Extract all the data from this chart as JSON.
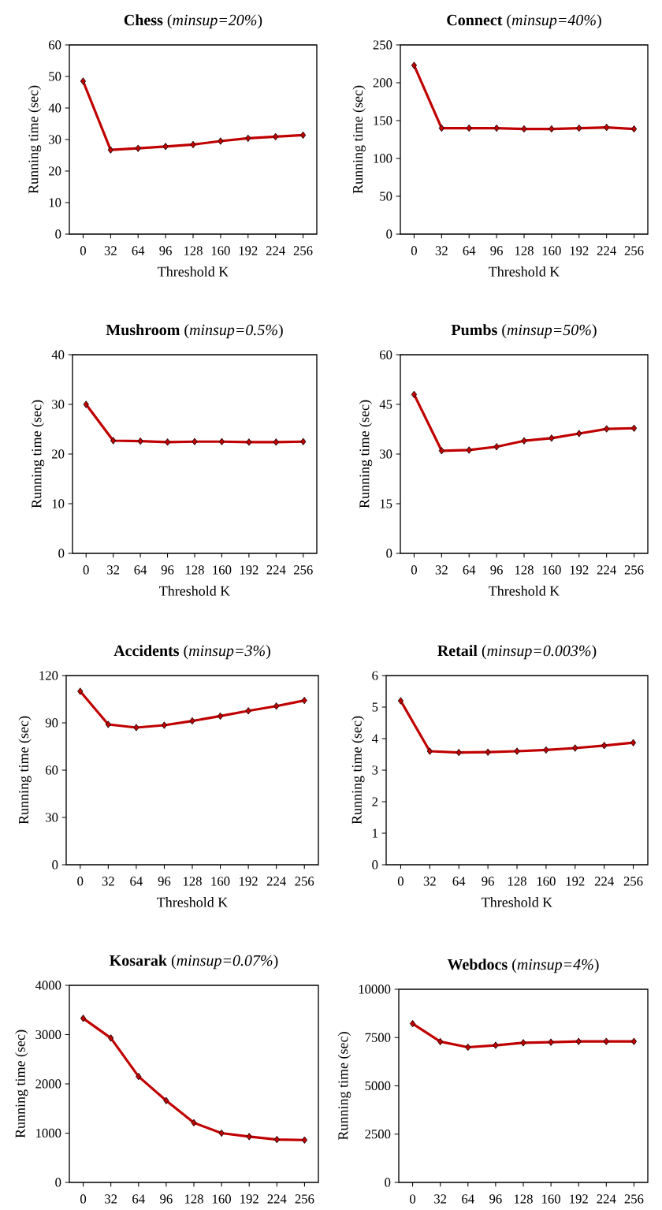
{
  "chart_data": [
    {
      "type": "line",
      "title": "**Chess** (*minsup=20%*)",
      "xlabel": "Threshold K",
      "ylabel": "Running time (sec)",
      "categories": [
        "0",
        "32",
        "64",
        "96",
        "128",
        "160",
        "192",
        "224",
        "256"
      ],
      "series": [
        {
          "color": "#c00000",
          "values": [
            48.5,
            26.7,
            27.2,
            27.8,
            28.4,
            29.5,
            30.4,
            30.9,
            31.4
          ]
        }
      ],
      "ylim": [
        0,
        60
      ],
      "yticks": [
        0,
        10,
        20,
        30,
        40,
        50,
        60
      ],
      "marker": "diamond"
    },
    {
      "type": "line",
      "title": "**Connect** (*minsup=40%*)",
      "xlabel": "Threshold K",
      "ylabel": "Running time (sec)",
      "categories": [
        "0",
        "32",
        "64",
        "96",
        "128",
        "160",
        "192",
        "224",
        "256"
      ],
      "series": [
        {
          "color": "#c00000",
          "values": [
            223,
            140,
            140,
            140,
            139,
            139,
            140,
            141,
            139
          ]
        }
      ],
      "ylim": [
        0,
        250
      ],
      "yticks": [
        0,
        50,
        100,
        150,
        200,
        250
      ],
      "marker": "diamond"
    },
    {
      "type": "line",
      "title": "**Mushroom** (*minsup=0.5%*)",
      "xlabel": "Threshold K",
      "ylabel": "Running time (sec)",
      "categories": [
        "0",
        "32",
        "64",
        "96",
        "128",
        "160",
        "192",
        "224",
        "256"
      ],
      "series": [
        {
          "color": "#c00000",
          "values": [
            30,
            22.7,
            22.6,
            22.4,
            22.5,
            22.5,
            22.4,
            22.4,
            22.5
          ]
        }
      ],
      "ylim": [
        0,
        40
      ],
      "yticks": [
        0,
        10,
        20,
        30,
        40
      ],
      "marker": "diamond"
    },
    {
      "type": "line",
      "title": "**Pumbs** (*minsup=50%*)",
      "xlabel": "Threshold K",
      "ylabel": "Running time (sec)",
      "categories": [
        "0",
        "32",
        "64",
        "96",
        "128",
        "160",
        "192",
        "224",
        "256"
      ],
      "series": [
        {
          "color": "#c00000",
          "values": [
            48,
            31,
            31.2,
            32.2,
            34,
            34.8,
            36.2,
            37.6,
            37.8
          ]
        }
      ],
      "ylim": [
        0,
        60
      ],
      "yticks": [
        0,
        15,
        30,
        45,
        60
      ],
      "marker": "diamond"
    },
    {
      "type": "line",
      "title": "**Accidents** (*minsup=3%*)",
      "xlabel": "Threshold K",
      "ylabel": "Running time (sec)",
      "categories": [
        "0",
        "32",
        "64",
        "96",
        "128",
        "160",
        "192",
        "224",
        "256"
      ],
      "series": [
        {
          "color": "#c00000",
          "values": [
            110,
            89,
            87,
            88.5,
            91.2,
            94.3,
            97.6,
            100.6,
            104.2
          ]
        }
      ],
      "ylim": [
        0,
        120
      ],
      "yticks": [
        0,
        30,
        60,
        90,
        120
      ],
      "marker": "diamond"
    },
    {
      "type": "line",
      "title": "**Retail** (*minsup=0.003%*)",
      "xlabel": "Threshold K",
      "ylabel": "Running time (sec)",
      "categories": [
        "0",
        "32",
        "64",
        "96",
        "128",
        "160",
        "192",
        "224",
        "256"
      ],
      "series": [
        {
          "color": "#c00000",
          "values": [
            5.2,
            3.6,
            3.56,
            3.57,
            3.6,
            3.64,
            3.7,
            3.78,
            3.87
          ]
        }
      ],
      "ylim": [
        0,
        6
      ],
      "yticks": [
        0,
        1,
        2,
        3,
        4,
        5,
        6
      ],
      "marker": "diamond"
    },
    {
      "type": "line",
      "title": "**Kosarak** (*minsup=0.07%*)",
      "ylabel": "Running time (sec)",
      "categories": [
        "0",
        "32",
        "64",
        "96",
        "128",
        "160",
        "192",
        "224",
        "256"
      ],
      "series": [
        {
          "color": "#c00000",
          "values": [
            3330,
            2930,
            2150,
            1660,
            1210,
            1000,
            930,
            870,
            860
          ]
        }
      ],
      "ylim": [
        0,
        4000
      ],
      "yticks": [
        0,
        1000,
        2000,
        3000,
        4000
      ],
      "marker": "diamond"
    },
    {
      "type": "line",
      "title": "**Webdocs** (*minsup=4%*)",
      "ylabel": "Running time (sec)",
      "categories": [
        "0",
        "32",
        "64",
        "96",
        "128",
        "160",
        "192",
        "224",
        "256"
      ],
      "series": [
        {
          "color": "#c00000",
          "values": [
            8220,
            7290,
            7000,
            7100,
            7230,
            7260,
            7300,
            7300,
            7300
          ]
        }
      ],
      "ylim": [
        0,
        10000
      ],
      "yticks": [
        0,
        2500,
        5000,
        7500,
        10000
      ],
      "marker": "diamond"
    }
  ]
}
